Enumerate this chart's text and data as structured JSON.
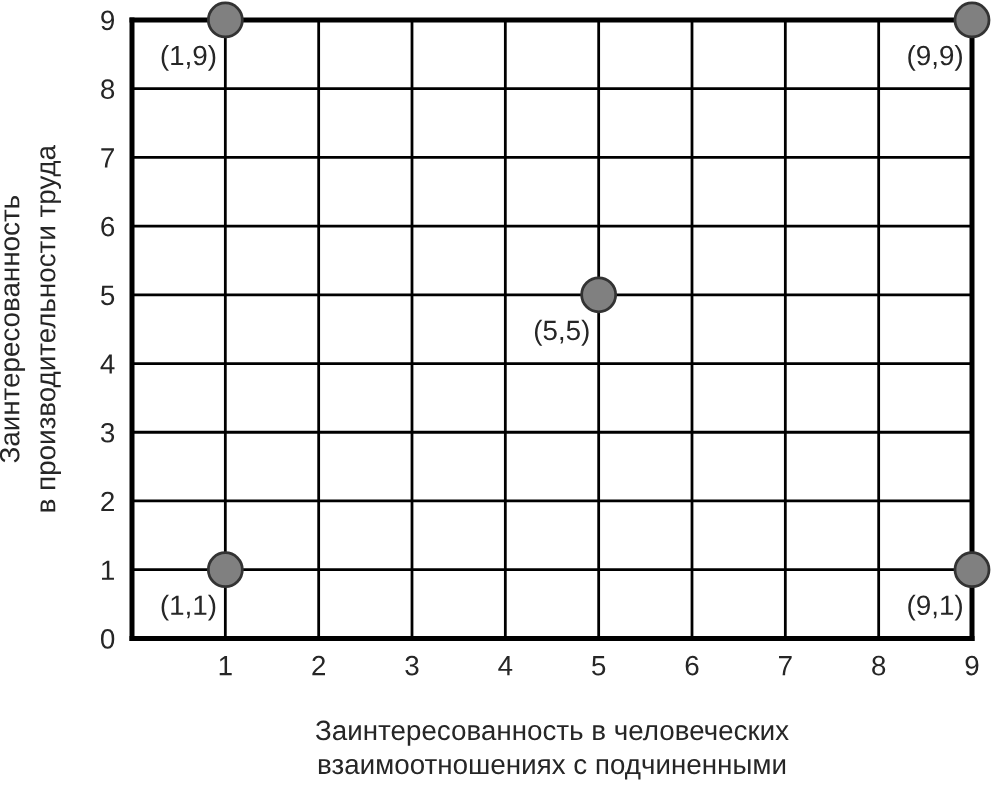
{
  "chart_data": {
    "type": "scatter",
    "xlabel": "Заинтересованность в человеческих\nвзаимоотношениях с подчиненными",
    "ylabel": "Заинтересованность\nв производительности труда",
    "x": [
      1,
      9,
      5,
      1,
      9
    ],
    "values": [
      9,
      9,
      5,
      1,
      1
    ],
    "color": "#808080",
    "marker": "circle",
    "xlim": [
      0,
      9
    ],
    "ylim": [
      0,
      9
    ],
    "xticks": [
      {
        "value": 0,
        "label": null
      },
      1,
      2,
      3,
      4,
      5,
      6,
      7,
      8,
      9
    ],
    "yticks": [
      0,
      1,
      2,
      3,
      4,
      5,
      6,
      7,
      8,
      9
    ],
    "grid": true,
    "annotations": [
      {
        "text": "(1,9)",
        "x": 1,
        "y": 9
      },
      {
        "text": "(9,9)",
        "x": 9,
        "y": 9
      },
      {
        "text": "(5,5)",
        "x": 5,
        "y": 5
      },
      {
        "text": "(1,1)",
        "x": 1,
        "y": 1
      },
      {
        "text": "(9,1)",
        "x": 9,
        "y": 1
      }
    ]
  }
}
